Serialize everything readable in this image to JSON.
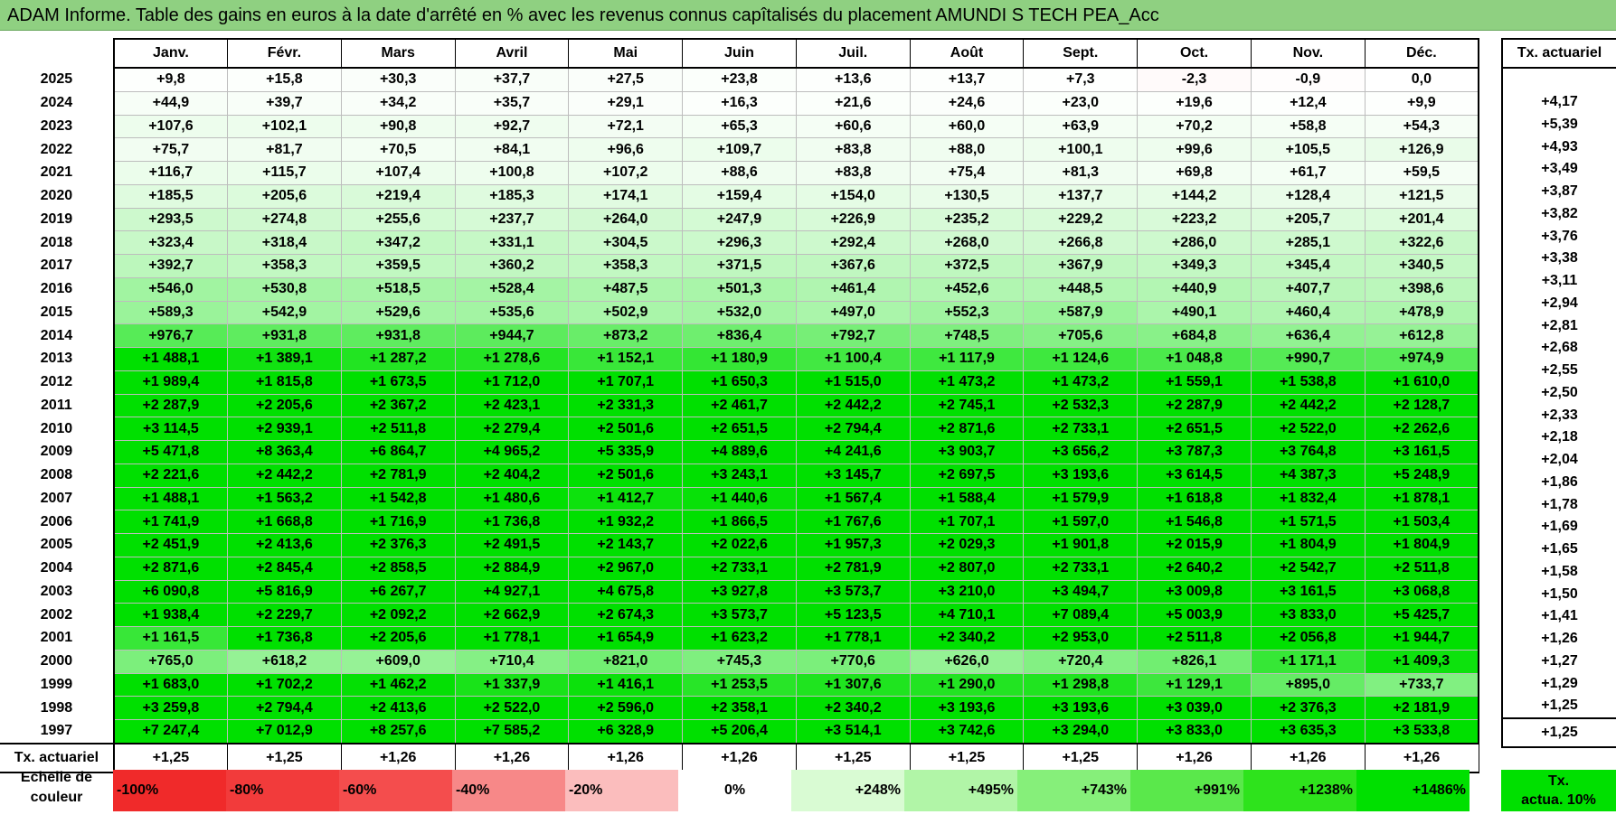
{
  "title": "ADAM Informe. Table des gains en euros à la date d'arrêté en % avec les revenus connus capîtalisés du placement AMUNDI S TECH PEA_Acc",
  "columns": [
    "Janv.",
    "Févr.",
    "Mars",
    "Avril",
    "Mai",
    "Juin",
    "Juil.",
    "Août",
    "Sept.",
    "Oct.",
    "Nov.",
    "Déc."
  ],
  "rate_header": "Tx. actuariel",
  "rows": [
    {
      "year": "2025",
      "values": [
        "+9,8",
        "+15,8",
        "+30,3",
        "+37,7",
        "+27,5",
        "+23,8",
        "+13,6",
        "+13,7",
        "+7,3",
        "-2,3",
        "-0,9",
        "0,0"
      ],
      "rate": ""
    },
    {
      "year": "2024",
      "values": [
        "+44,9",
        "+39,7",
        "+34,2",
        "+35,7",
        "+29,1",
        "+16,3",
        "+21,6",
        "+24,6",
        "+23,0",
        "+19,6",
        "+12,4",
        "+9,9"
      ],
      "rate": "+4,17"
    },
    {
      "year": "2023",
      "values": [
        "+107,6",
        "+102,1",
        "+90,8",
        "+92,7",
        "+72,1",
        "+65,3",
        "+60,6",
        "+60,0",
        "+63,9",
        "+70,2",
        "+58,8",
        "+54,3"
      ],
      "rate": "+5,39"
    },
    {
      "year": "2022",
      "values": [
        "+75,7",
        "+81,7",
        "+70,5",
        "+84,1",
        "+96,6",
        "+109,7",
        "+83,8",
        "+88,0",
        "+100,1",
        "+99,6",
        "+105,5",
        "+126,9"
      ],
      "rate": "+4,93"
    },
    {
      "year": "2021",
      "values": [
        "+116,7",
        "+115,7",
        "+107,4",
        "+100,8",
        "+107,2",
        "+88,6",
        "+83,8",
        "+75,4",
        "+81,3",
        "+69,8",
        "+61,7",
        "+59,5"
      ],
      "rate": "+3,49"
    },
    {
      "year": "2020",
      "values": [
        "+185,5",
        "+205,6",
        "+219,4",
        "+185,3",
        "+174,1",
        "+159,4",
        "+154,0",
        "+130,5",
        "+137,7",
        "+144,2",
        "+128,4",
        "+121,5"
      ],
      "rate": "+3,87"
    },
    {
      "year": "2019",
      "values": [
        "+293,5",
        "+274,8",
        "+255,6",
        "+237,7",
        "+264,0",
        "+247,9",
        "+226,9",
        "+235,2",
        "+229,2",
        "+223,2",
        "+205,7",
        "+201,4"
      ],
      "rate": "+3,82"
    },
    {
      "year": "2018",
      "values": [
        "+323,4",
        "+318,4",
        "+347,2",
        "+331,1",
        "+304,5",
        "+296,3",
        "+292,4",
        "+268,0",
        "+266,8",
        "+286,0",
        "+285,1",
        "+322,6"
      ],
      "rate": "+3,76"
    },
    {
      "year": "2017",
      "values": [
        "+392,7",
        "+358,3",
        "+359,5",
        "+360,2",
        "+358,3",
        "+371,5",
        "+367,6",
        "+372,5",
        "+367,9",
        "+349,3",
        "+345,4",
        "+340,5"
      ],
      "rate": "+3,38"
    },
    {
      "year": "2016",
      "values": [
        "+546,0",
        "+530,8",
        "+518,5",
        "+528,4",
        "+487,5",
        "+501,3",
        "+461,4",
        "+452,6",
        "+448,5",
        "+440,9",
        "+407,7",
        "+398,6"
      ],
      "rate": "+3,11"
    },
    {
      "year": "2015",
      "values": [
        "+589,3",
        "+542,9",
        "+529,6",
        "+535,6",
        "+502,9",
        "+532,0",
        "+497,0",
        "+552,3",
        "+587,9",
        "+490,1",
        "+460,4",
        "+478,9"
      ],
      "rate": "+2,94"
    },
    {
      "year": "2014",
      "values": [
        "+976,7",
        "+931,8",
        "+931,8",
        "+944,7",
        "+873,2",
        "+836,4",
        "+792,7",
        "+748,5",
        "+705,6",
        "+684,8",
        "+636,4",
        "+612,8"
      ],
      "rate": "+2,81"
    },
    {
      "year": "2013",
      "values": [
        "+1 488,1",
        "+1 389,1",
        "+1 287,2",
        "+1 278,6",
        "+1 152,1",
        "+1 180,9",
        "+1 100,4",
        "+1 117,9",
        "+1 124,6",
        "+1 048,8",
        "+990,7",
        "+974,9"
      ],
      "rate": "+2,68"
    },
    {
      "year": "2012",
      "values": [
        "+1 989,4",
        "+1 815,8",
        "+1 673,5",
        "+1 712,0",
        "+1 707,1",
        "+1 650,3",
        "+1 515,0",
        "+1 473,2",
        "+1 473,2",
        "+1 559,1",
        "+1 538,8",
        "+1 610,0"
      ],
      "rate": "+2,55"
    },
    {
      "year": "2011",
      "values": [
        "+2 287,9",
        "+2 205,6",
        "+2 367,2",
        "+2 423,1",
        "+2 331,3",
        "+2 461,7",
        "+2 442,2",
        "+2 745,1",
        "+2 532,3",
        "+2 287,9",
        "+2 442,2",
        "+2 128,7"
      ],
      "rate": "+2,50"
    },
    {
      "year": "2010",
      "values": [
        "+3 114,5",
        "+2 939,1",
        "+2 511,8",
        "+2 279,4",
        "+2 501,6",
        "+2 651,5",
        "+2 794,4",
        "+2 871,6",
        "+2 733,1",
        "+2 651,5",
        "+2 522,0",
        "+2 262,6"
      ],
      "rate": "+2,33"
    },
    {
      "year": "2009",
      "values": [
        "+5 471,8",
        "+8 363,4",
        "+6 864,7",
        "+4 965,2",
        "+5 335,9",
        "+4 889,6",
        "+4 241,6",
        "+3 903,7",
        "+3 656,2",
        "+3 787,3",
        "+3 764,8",
        "+3 161,5"
      ],
      "rate": "+2,18"
    },
    {
      "year": "2008",
      "values": [
        "+2 221,6",
        "+2 442,2",
        "+2 781,9",
        "+2 404,2",
        "+2 501,6",
        "+3 243,1",
        "+3 145,7",
        "+2 697,5",
        "+3 193,6",
        "+3 614,5",
        "+4 387,3",
        "+5 248,9"
      ],
      "rate": "+2,04"
    },
    {
      "year": "2007",
      "values": [
        "+1 488,1",
        "+1 563,2",
        "+1 542,8",
        "+1 480,6",
        "+1 412,7",
        "+1 440,6",
        "+1 567,4",
        "+1 588,4",
        "+1 579,9",
        "+1 618,8",
        "+1 832,4",
        "+1 878,1"
      ],
      "rate": "+1,86"
    },
    {
      "year": "2006",
      "values": [
        "+1 741,9",
        "+1 668,8",
        "+1 716,9",
        "+1 736,8",
        "+1 932,2",
        "+1 866,5",
        "+1 767,6",
        "+1 707,1",
        "+1 597,0",
        "+1 546,8",
        "+1 571,5",
        "+1 503,4"
      ],
      "rate": "+1,78"
    },
    {
      "year": "2005",
      "values": [
        "+2 451,9",
        "+2 413,6",
        "+2 376,3",
        "+2 491,5",
        "+2 143,7",
        "+2 022,6",
        "+1 957,3",
        "+2 029,3",
        "+1 901,8",
        "+2 015,9",
        "+1 804,9",
        "+1 804,9"
      ],
      "rate": "+1,69"
    },
    {
      "year": "2004",
      "values": [
        "+2 871,6",
        "+2 845,4",
        "+2 858,5",
        "+2 884,9",
        "+2 967,0",
        "+2 733,1",
        "+2 781,9",
        "+2 807,0",
        "+2 733,1",
        "+2 640,2",
        "+2 542,7",
        "+2 511,8"
      ],
      "rate": "+1,65"
    },
    {
      "year": "2003",
      "values": [
        "+6 090,8",
        "+5 816,9",
        "+6 267,7",
        "+4 927,1",
        "+4 675,8",
        "+3 927,8",
        "+3 573,7",
        "+3 210,0",
        "+3 494,7",
        "+3 009,8",
        "+3 161,5",
        "+3 068,8"
      ],
      "rate": "+1,58"
    },
    {
      "year": "2002",
      "values": [
        "+1 938,4",
        "+2 229,7",
        "+2 092,2",
        "+2 662,9",
        "+2 674,3",
        "+3 573,7",
        "+5 123,5",
        "+4 710,1",
        "+7 089,4",
        "+5 003,9",
        "+3 833,0",
        "+5 425,7"
      ],
      "rate": "+1,50"
    },
    {
      "year": "2001",
      "values": [
        "+1 161,5",
        "+1 736,8",
        "+2 205,6",
        "+1 778,1",
        "+1 654,9",
        "+1 623,2",
        "+1 778,1",
        "+2 340,2",
        "+2 953,0",
        "+2 511,8",
        "+2 056,8",
        "+1 944,7"
      ],
      "rate": "+1,41"
    },
    {
      "year": "2000",
      "values": [
        "+765,0",
        "+618,2",
        "+609,0",
        "+710,4",
        "+821,0",
        "+745,3",
        "+770,6",
        "+626,0",
        "+720,4",
        "+826,1",
        "+1 171,1",
        "+1 409,3"
      ],
      "rate": "+1,26"
    },
    {
      "year": "1999",
      "values": [
        "+1 683,0",
        "+1 702,2",
        "+1 462,2",
        "+1 337,9",
        "+1 416,1",
        "+1 253,5",
        "+1 307,6",
        "+1 290,0",
        "+1 298,8",
        "+1 129,1",
        "+895,0",
        "+733,7"
      ],
      "rate": "+1,27"
    },
    {
      "year": "1998",
      "values": [
        "+3 259,8",
        "+2 794,4",
        "+2 413,6",
        "+2 522,0",
        "+2 596,0",
        "+2 358,1",
        "+2 340,2",
        "+3 193,6",
        "+3 193,6",
        "+3 039,0",
        "+2 376,3",
        "+2 181,9"
      ],
      "rate": "+1,29"
    },
    {
      "year": "1997",
      "values": [
        "+7 247,4",
        "+7 012,9",
        "+8 257,6",
        "+7 585,2",
        "+6 328,9",
        "+5 206,4",
        "+3 514,1",
        "+3 742,6",
        "+3 294,0",
        "+3 833,0",
        "+3 635,3",
        "+3 533,8"
      ],
      "rate": "+1,25"
    }
  ],
  "footer": {
    "label": "Tx. actuariel",
    "values": [
      "+1,25",
      "+1,25",
      "+1,26",
      "+1,26",
      "+1,26",
      "+1,26",
      "+1,25",
      "+1,25",
      "+1,25",
      "+1,26",
      "+1,26",
      "+1,26"
    ],
    "rate": "+1,25"
  },
  "scale": {
    "label_line1": "Echelle de",
    "label_line2": "couleur",
    "items": [
      {
        "label": "-100%",
        "color": "#f02a2a",
        "align": "left"
      },
      {
        "label": "-80%",
        "color": "#f23b3b",
        "align": "left"
      },
      {
        "label": "-60%",
        "color": "#f44d4d",
        "align": "left"
      },
      {
        "label": "-40%",
        "color": "#f78888",
        "align": "left"
      },
      {
        "label": "-20%",
        "color": "#fbbdbd",
        "align": "left"
      },
      {
        "label": "0%",
        "color": "#ffffff",
        "align": "center"
      },
      {
        "label": "+248%",
        "color": "#d9fbd3",
        "align": "right"
      },
      {
        "label": "+495%",
        "color": "#b1f5a7",
        "align": "right"
      },
      {
        "label": "+743%",
        "color": "#86ef7a",
        "align": "right"
      },
      {
        "label": "+991%",
        "color": "#5ae84b",
        "align": "right"
      },
      {
        "label": "+1238%",
        "color": "#2ee31c",
        "align": "right"
      },
      {
        "label": "+1486%",
        "color": "#00e000",
        "align": "right"
      }
    ],
    "tx_line1": "Tx.",
    "tx_line2": "actua. 10%"
  }
}
